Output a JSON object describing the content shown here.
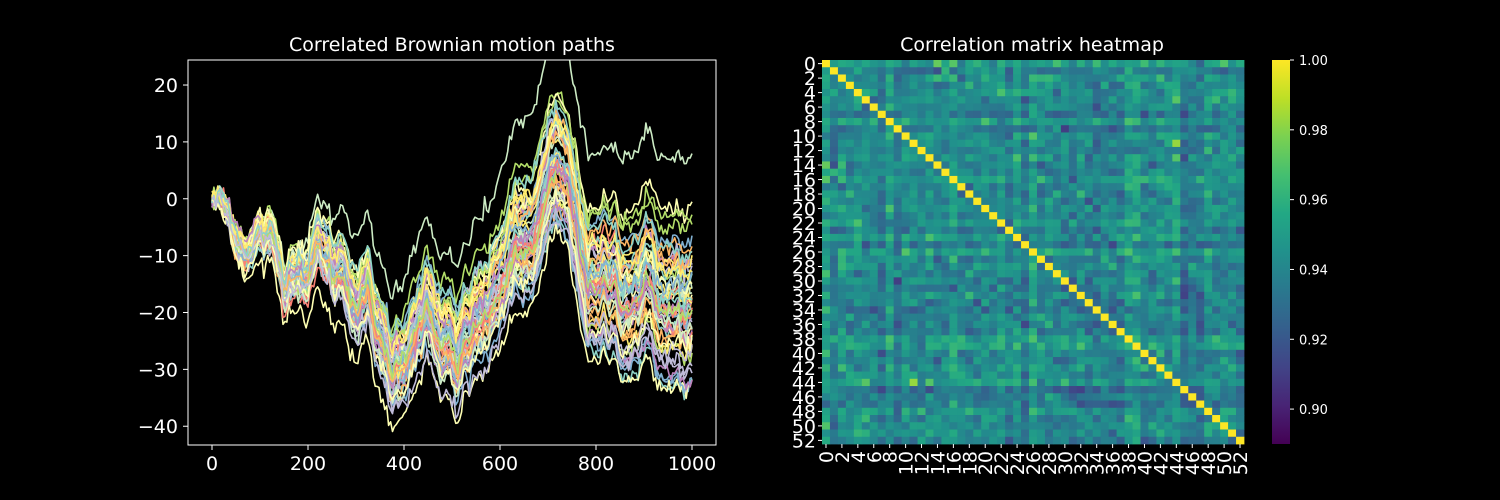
{
  "colors": {
    "background": "#000000",
    "foreground": "#ffffff",
    "path_palette": [
      "#8dd3c7",
      "#feffb3",
      "#bfbbd9",
      "#fa8174",
      "#81b1d2",
      "#fdb462",
      "#b3de69",
      "#bc82bd",
      "#ccebc4",
      "#ffed6f"
    ]
  },
  "chart_data": [
    {
      "type": "line",
      "title": "Correlated Brownian motion paths",
      "xlabel": "",
      "ylabel": "",
      "xlim": [
        -50,
        1050
      ],
      "ylim": [
        -43.3,
        24.4
      ],
      "xticks": [
        0,
        200,
        400,
        600,
        800,
        1000
      ],
      "xtick_labels": [
        "0",
        "200",
        "400",
        "600",
        "800",
        "1000"
      ],
      "yticks": [
        20,
        10,
        0,
        -10,
        -20,
        -30,
        -40
      ],
      "ytick_labels": [
        "20",
        "10",
        "0",
        "−10",
        "−20",
        "−30",
        "−40"
      ],
      "n_paths": 53,
      "n_steps": 1000,
      "common_path": {
        "x": [
          0,
          20,
          50,
          80,
          100,
          125,
          150,
          175,
          200,
          225,
          250,
          275,
          300,
          325,
          350,
          375,
          400,
          425,
          450,
          470,
          490,
          510,
          530,
          560,
          590,
          620,
          650,
          680,
          700,
          720,
          740,
          760,
          780,
          800,
          830,
          860,
          890,
          920,
          950,
          980,
          1000
        ],
        "y": [
          0,
          -1,
          -6,
          -8,
          -6,
          -8,
          -15,
          -10,
          -12,
          -7,
          -13,
          -12,
          -17,
          -16,
          -25,
          -30,
          -26,
          -20,
          -18,
          -24,
          -25,
          -30,
          -24,
          -20,
          -17,
          -8,
          -8,
          -3,
          3,
          5,
          3,
          -5,
          -12,
          -15,
          -14,
          -15,
          -14,
          -14,
          -18,
          -18,
          -19
        ]
      },
      "spread_std_at_end": 8.5,
      "grid": false,
      "legend": "none"
    },
    {
      "type": "heatmap",
      "title": "Correlation matrix heatmap",
      "size": 53,
      "tick_labels": [
        "0",
        "2",
        "4",
        "6",
        "8",
        "10",
        "12",
        "14",
        "16",
        "18",
        "20",
        "22",
        "24",
        "26",
        "28",
        "30",
        "32",
        "34",
        "36",
        "38",
        "40",
        "42",
        "44",
        "46",
        "48",
        "50",
        "52"
      ],
      "colormap": "viridis",
      "vmin": 0.89,
      "vmax": 1.0,
      "diagonal_value": 1.0,
      "offdiag_range": [
        0.89,
        0.99
      ],
      "colorbar_ticks": [
        0.9,
        0.92,
        0.94,
        0.96,
        0.98,
        1.0
      ],
      "colorbar_tick_labels": [
        "0.90",
        "0.92",
        "0.94",
        "0.96",
        "0.98",
        "1.00"
      ],
      "grid": false
    }
  ]
}
